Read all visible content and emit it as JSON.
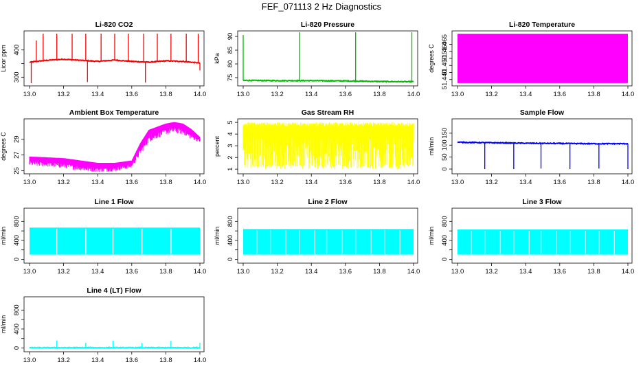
{
  "figure": {
    "title": "FEF_071113  2 Hz Diagnostics"
  },
  "colors": {
    "co2": "#ff0000",
    "pressure": "#00bb00",
    "temperature": "#ff00ff",
    "box_temp": "#ff00ff",
    "rh": "#ffff00",
    "sample_flow": "#0000ff",
    "line_flow": "#00ffff"
  },
  "chart_data": [
    {
      "type": "line",
      "title": "Li-820 CO2",
      "ylabel": "Licor ppm",
      "color": "#ff0000",
      "xlim": [
        13.0,
        14.0
      ],
      "ylim": [
        268,
        470
      ],
      "xticks": [
        "13.0",
        "13.2",
        "13.4",
        "13.6",
        "13.8",
        "14.0"
      ],
      "yticks": [
        300,
        350,
        400
      ],
      "ytick_labels": [
        "300",
        "",
        "400"
      ],
      "baseline": [
        {
          "x": 13.0,
          "y": 355
        },
        {
          "x": 13.1,
          "y": 362
        },
        {
          "x": 13.2,
          "y": 366
        },
        {
          "x": 13.3,
          "y": 362
        },
        {
          "x": 13.4,
          "y": 358
        },
        {
          "x": 13.5,
          "y": 363
        },
        {
          "x": 13.6,
          "y": 358
        },
        {
          "x": 13.7,
          "y": 355
        },
        {
          "x": 13.8,
          "y": 360
        },
        {
          "x": 13.9,
          "y": 358
        },
        {
          "x": 14.0,
          "y": 352
        }
      ],
      "spikes": [
        {
          "x": 13.01,
          "y": 278
        },
        {
          "x": 13.04,
          "y": 435
        },
        {
          "x": 13.08,
          "y": 460
        },
        {
          "x": 13.16,
          "y": 460
        },
        {
          "x": 13.25,
          "y": 460
        },
        {
          "x": 13.33,
          "y": 460
        },
        {
          "x": 13.34,
          "y": 282
        },
        {
          "x": 13.42,
          "y": 460
        },
        {
          "x": 13.5,
          "y": 460
        },
        {
          "x": 13.58,
          "y": 460
        },
        {
          "x": 13.67,
          "y": 460
        },
        {
          "x": 13.68,
          "y": 280
        },
        {
          "x": 13.75,
          "y": 460
        },
        {
          "x": 13.83,
          "y": 460
        },
        {
          "x": 13.92,
          "y": 460
        },
        {
          "x": 13.99,
          "y": 460
        },
        {
          "x": 14.0,
          "y": 325
        }
      ]
    },
    {
      "type": "line",
      "title": "Li-820 Pressure",
      "ylabel": "kPa",
      "color": "#00bb00",
      "xlim": [
        13.0,
        14.0
      ],
      "ylim": [
        72,
        92
      ],
      "xticks": [
        "13.0",
        "13.2",
        "13.4",
        "13.6",
        "13.8",
        "14.0"
      ],
      "yticks": [
        75,
        80,
        85,
        90
      ],
      "ytick_labels": [
        "75",
        "80",
        "85",
        "90"
      ],
      "baseline": [
        {
          "x": 13.0,
          "y": 74.0
        },
        {
          "x": 13.2,
          "y": 73.9
        },
        {
          "x": 13.4,
          "y": 73.9
        },
        {
          "x": 13.6,
          "y": 73.8
        },
        {
          "x": 13.8,
          "y": 73.6
        },
        {
          "x": 14.0,
          "y": 73.5
        }
      ],
      "spikes": [
        {
          "x": 13.0,
          "y": 90.5
        },
        {
          "x": 13.33,
          "y": 91.5
        },
        {
          "x": 13.66,
          "y": 91.5
        },
        {
          "x": 13.99,
          "y": 91.5
        }
      ]
    },
    {
      "type": "area",
      "title": "Li-820 Temperature",
      "ylabel": "degrees C",
      "color": "#ff00ff",
      "xlim": [
        13.0,
        14.0
      ],
      "ylim": [
        51.4355,
        51.4745
      ],
      "xticks": [
        "13.0",
        "13.2",
        "13.4",
        "13.6",
        "13.8",
        "14.0"
      ],
      "yticks": [
        51.44,
        51.445,
        51.45,
        51.455,
        51.46,
        51.465
      ],
      "ytick_labels": [
        "51.440",
        "",
        "51.450",
        "",
        "51.460",
        "51.465"
      ],
      "band": [
        51.4375,
        51.4725
      ]
    },
    {
      "type": "line",
      "title": "Ambient Box Temperature",
      "ylabel": "degrees C",
      "color": "#ff00ff",
      "xlim": [
        13.0,
        14.0
      ],
      "ylim": [
        24.6,
        31.6
      ],
      "xticks": [
        "13.0",
        "13.2",
        "13.4",
        "13.6",
        "13.8",
        "14.0"
      ],
      "yticks": [
        25,
        27,
        29
      ],
      "ytick_labels": [
        "25",
        "27",
        "29"
      ],
      "upper": [
        {
          "x": 13.0,
          "y": 26.8
        },
        {
          "x": 13.1,
          "y": 26.7
        },
        {
          "x": 13.2,
          "y": 26.6
        },
        {
          "x": 13.3,
          "y": 26.3
        },
        {
          "x": 13.4,
          "y": 26.0
        },
        {
          "x": 13.5,
          "y": 26.0
        },
        {
          "x": 13.6,
          "y": 26.3
        },
        {
          "x": 13.65,
          "y": 28.5
        },
        {
          "x": 13.7,
          "y": 30.2
        },
        {
          "x": 13.8,
          "y": 31.0
        },
        {
          "x": 13.85,
          "y": 31.2
        },
        {
          "x": 13.9,
          "y": 31.0
        },
        {
          "x": 13.95,
          "y": 30.3
        },
        {
          "x": 14.0,
          "y": 29.3
        }
      ],
      "lower": [
        {
          "x": 13.0,
          "y": 25.6
        },
        {
          "x": 13.1,
          "y": 25.5
        },
        {
          "x": 13.2,
          "y": 25.3
        },
        {
          "x": 13.3,
          "y": 25.0
        },
        {
          "x": 13.4,
          "y": 24.8
        },
        {
          "x": 13.5,
          "y": 24.9
        },
        {
          "x": 13.6,
          "y": 25.4
        },
        {
          "x": 13.65,
          "y": 27.0
        },
        {
          "x": 13.7,
          "y": 28.6
        },
        {
          "x": 13.8,
          "y": 29.6
        },
        {
          "x": 13.85,
          "y": 29.8
        },
        {
          "x": 13.9,
          "y": 29.6
        },
        {
          "x": 13.95,
          "y": 29.0
        },
        {
          "x": 14.0,
          "y": 28.6
        }
      ]
    },
    {
      "type": "area",
      "title": "Gas Stream RH",
      "ylabel": "percent",
      "color": "#ffff00",
      "xlim": [
        13.0,
        14.0
      ],
      "ylim": [
        0.6,
        5.3
      ],
      "xticks": [
        "13.0",
        "13.2",
        "13.4",
        "13.6",
        "13.8",
        "14.0"
      ],
      "yticks": [
        1,
        2,
        3,
        4,
        5
      ],
      "ytick_labels": [
        "1",
        "2",
        "3",
        "4",
        "5"
      ],
      "band": [
        1.0,
        5.0
      ]
    },
    {
      "type": "line",
      "title": "Sample Flow",
      "ylabel": "ml/min",
      "color": "#0000ff",
      "xlim": [
        13.0,
        14.0
      ],
      "ylim": [
        -20,
        210
      ],
      "xticks": [
        "13.0",
        "13.2",
        "13.4",
        "13.6",
        "13.8",
        "14.0"
      ],
      "yticks": [
        0,
        50,
        100,
        150
      ],
      "ytick_labels": [
        "0",
        "50",
        "100",
        "150"
      ],
      "baseline": [
        {
          "x": 13.0,
          "y": 112
        },
        {
          "x": 13.2,
          "y": 110
        },
        {
          "x": 13.4,
          "y": 108
        },
        {
          "x": 13.6,
          "y": 107
        },
        {
          "x": 13.8,
          "y": 106
        },
        {
          "x": 14.0,
          "y": 106
        }
      ],
      "spikes": [
        {
          "x": 13.16,
          "y": 0
        },
        {
          "x": 13.33,
          "y": 0
        },
        {
          "x": 13.49,
          "y": 2
        },
        {
          "x": 13.66,
          "y": 0
        },
        {
          "x": 13.83,
          "y": 2
        },
        {
          "x": 14.0,
          "y": 0
        }
      ]
    },
    {
      "type": "area",
      "title": "Line 1 Flow",
      "ylabel": "ml/min",
      "color": "#00ffff",
      "xlim": [
        13.0,
        14.0
      ],
      "ylim": [
        -80,
        1080
      ],
      "xticks": [
        "13.0",
        "13.2",
        "13.4",
        "13.6",
        "13.8",
        "14.0"
      ],
      "yticks": [
        0,
        200,
        400,
        600,
        800
      ],
      "ytick_labels": [
        "0",
        "",
        "400",
        "",
        "800"
      ],
      "band": [
        100,
        670
      ],
      "gaps": [
        13.16,
        13.33,
        13.49,
        13.66,
        13.83
      ]
    },
    {
      "type": "area",
      "title": "Line 2 Flow",
      "ylabel": "ml/min",
      "color": "#00ffff",
      "xlim": [
        13.0,
        14.0
      ],
      "ylim": [
        -80,
        1080
      ],
      "xticks": [
        "13.0",
        "13.2",
        "13.4",
        "13.6",
        "13.8",
        "14.0"
      ],
      "yticks": [
        0,
        200,
        400,
        600,
        800
      ],
      "ytick_labels": [
        "0",
        "",
        "400",
        "",
        "800"
      ],
      "band": [
        100,
        640
      ],
      "gaps": [
        13.08,
        13.16,
        13.25,
        13.33,
        13.42,
        13.49,
        13.58,
        13.66,
        13.75,
        13.83,
        13.92
      ]
    },
    {
      "type": "area",
      "title": "Line 3 Flow",
      "ylabel": "ml/min",
      "color": "#00ffff",
      "xlim": [
        13.0,
        14.0
      ],
      "ylim": [
        -80,
        1080
      ],
      "xticks": [
        "13.0",
        "13.2",
        "13.4",
        "13.6",
        "13.8",
        "14.0"
      ],
      "yticks": [
        0,
        200,
        400,
        600,
        800
      ],
      "ytick_labels": [
        "0",
        "",
        "400",
        "",
        "800"
      ],
      "band": [
        100,
        630
      ],
      "gaps": [
        13.08,
        13.16,
        13.25,
        13.33,
        13.42,
        13.49,
        13.58,
        13.66,
        13.75,
        13.83,
        13.92
      ]
    },
    {
      "type": "line",
      "title": "Line 4 (LT) Flow",
      "ylabel": "ml/min",
      "color": "#00ffff",
      "xlim": [
        13.0,
        14.0
      ],
      "ylim": [
        -80,
        1080
      ],
      "xticks": [
        "13.0",
        "13.2",
        "13.4",
        "13.6",
        "13.8",
        "14.0"
      ],
      "yticks": [
        0,
        200,
        400,
        600,
        800
      ],
      "ytick_labels": [
        "0",
        "",
        "400",
        "",
        "800"
      ],
      "baseline": [
        {
          "x": 13.0,
          "y": 5
        },
        {
          "x": 14.0,
          "y": 5
        }
      ],
      "spikes": [
        {
          "x": 13.16,
          "y": 160
        },
        {
          "x": 13.33,
          "y": 110
        },
        {
          "x": 13.49,
          "y": 155
        },
        {
          "x": 13.66,
          "y": 110
        },
        {
          "x": 13.83,
          "y": 150
        },
        {
          "x": 14.0,
          "y": 110
        }
      ]
    }
  ]
}
